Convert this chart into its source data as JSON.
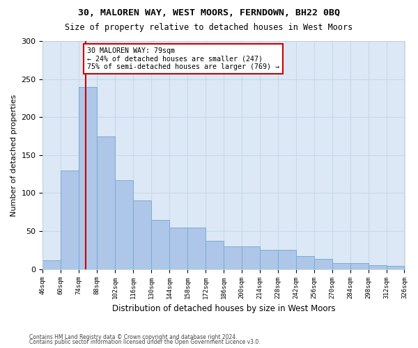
{
  "title1": "30, MALOREN WAY, WEST MOORS, FERNDOWN, BH22 0BQ",
  "title2": "Size of property relative to detached houses in West Moors",
  "xlabel": "Distribution of detached houses by size in West Moors",
  "ylabel": "Number of detached properties",
  "footnote1": "Contains HM Land Registry data © Crown copyright and database right 2024.",
  "footnote2": "Contains public sector information licensed under the Open Government Licence v3.0.",
  "annotation_line1": "30 MALOREN WAY: 79sqm",
  "annotation_line2": "← 24% of detached houses are smaller (247)",
  "annotation_line3": "75% of semi-detached houses are larger (769) →",
  "bar_edges": [
    46,
    60,
    74,
    88,
    102,
    116,
    130,
    144,
    158,
    172,
    186,
    200,
    214,
    228,
    242,
    256,
    270,
    284,
    298,
    312,
    326
  ],
  "bar_heights": [
    12,
    130,
    240,
    175,
    117,
    90,
    65,
    55,
    55,
    37,
    30,
    30,
    25,
    25,
    17,
    13,
    8,
    8,
    5,
    4
  ],
  "bar_color": "#aec6e8",
  "bar_edgecolor": "#7aacd4",
  "property_size": 79,
  "vline_color": "#cc0000",
  "annotation_box_edgecolor": "#cc0000",
  "ylim": [
    0,
    300
  ],
  "yticks": [
    0,
    50,
    100,
    150,
    200,
    250,
    300
  ],
  "grid_color": "#c8d8ea",
  "bg_color": "#dce8f5"
}
